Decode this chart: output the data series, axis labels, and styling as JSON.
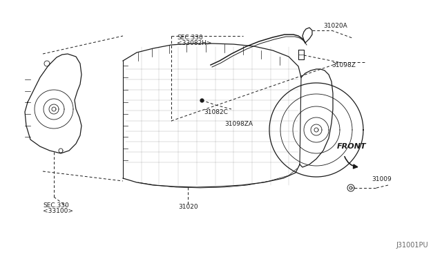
{
  "bg_color": "#ffffff",
  "line_color": "#1a1a1a",
  "figsize": [
    6.4,
    3.72
  ],
  "dpi": 100,
  "labels": {
    "sec330_top_line1": "SEC.330",
    "sec330_top_line2": "<33082H>",
    "sec330_bot_line1": "SEC.330",
    "sec330_bot_line2": "<33100>",
    "31020A": "31020A",
    "31098Z": "31098Z",
    "31082C": "31082C",
    "31098ZA": "31098ZA",
    "31020": "31020",
    "31009": "31009",
    "FRONT": "FRONT",
    "code": "J31001PU"
  }
}
